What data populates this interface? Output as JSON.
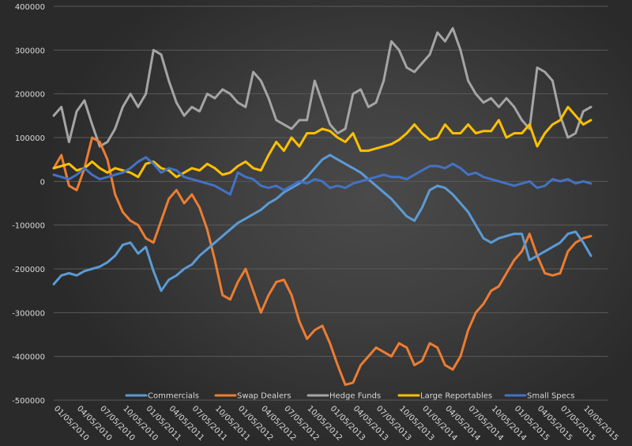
{
  "chart_data": {
    "type": "line",
    "title": "",
    "xlabel": "",
    "ylabel": "",
    "ylim": [
      -500000,
      400000
    ],
    "yticks": [
      400000,
      300000,
      200000,
      100000,
      0,
      -100000,
      -200000,
      -300000,
      -400000,
      -500000
    ],
    "ytick_labels": [
      "400000",
      "300000",
      "200000",
      "100000",
      "0",
      "-100000",
      "-200000",
      "-300000",
      "-400000",
      "-500000"
    ],
    "xtick_labels": [
      "01/05/2010",
      "04/05/2010",
      "07/05/2010",
      "10/05/2010",
      "01/05/2011",
      "04/05/2011",
      "07/05/2011",
      "10/05/2011",
      "01/05/2012",
      "04/05/2012",
      "07/05/2012",
      "10/05/2012",
      "01/05/2013",
      "04/05/2013",
      "07/05/2013",
      "10/05/2013",
      "01/05/2014",
      "04/05/2014",
      "07/05/2014",
      "10/05/2014",
      "01/05/2015",
      "04/05/2015",
      "07/05/2015",
      "10/05/2015"
    ],
    "x_range_months": [
      0,
      70
    ],
    "grid": true,
    "legend_position": "bottom",
    "series": [
      {
        "name": "Commercials",
        "color": "#5b9bd5",
        "x_months": [
          0,
          1,
          2,
          3,
          4,
          5,
          6,
          7,
          8,
          9,
          10,
          11,
          12,
          13,
          14,
          15,
          16,
          17,
          18,
          19,
          20,
          21,
          22,
          23,
          24,
          25,
          26,
          27,
          28,
          29,
          30,
          31,
          32,
          33,
          34,
          35,
          36,
          37,
          38,
          39,
          40,
          41,
          42,
          43,
          44,
          45,
          46,
          47,
          48,
          49,
          50,
          51,
          52,
          53,
          54,
          55,
          56,
          57,
          58,
          59,
          60,
          61,
          62,
          63,
          64,
          65,
          66,
          67,
          68,
          69,
          70
        ],
        "values": [
          -235000,
          -215000,
          -210000,
          -215000,
          -205000,
          -200000,
          -195000,
          -185000,
          -170000,
          -145000,
          -140000,
          -165000,
          -150000,
          -205000,
          -250000,
          -225000,
          -215000,
          -200000,
          -190000,
          -170000,
          -155000,
          -140000,
          -125000,
          -110000,
          -95000,
          -85000,
          -75000,
          -65000,
          -50000,
          -40000,
          -25000,
          -15000,
          -5000,
          10000,
          30000,
          50000,
          60000,
          50000,
          40000,
          30000,
          20000,
          5000,
          -10000,
          -25000,
          -40000,
          -60000,
          -80000,
          -90000,
          -60000,
          -20000,
          -10000,
          -15000,
          -30000,
          -50000,
          -70000,
          -100000,
          -130000,
          -140000,
          -130000,
          -125000,
          -120000,
          -120000,
          -180000,
          -170000,
          -160000,
          -150000,
          -140000,
          -120000,
          -115000,
          -140000,
          -170000
        ]
      },
      {
        "name": "Swap Dealers",
        "color": "#ed7d31",
        "x_months": [
          0,
          1,
          2,
          3,
          4,
          5,
          6,
          7,
          8,
          9,
          10,
          11,
          12,
          13,
          14,
          15,
          16,
          17,
          18,
          19,
          20,
          21,
          22,
          23,
          24,
          25,
          26,
          27,
          28,
          29,
          30,
          31,
          32,
          33,
          34,
          35,
          36,
          37,
          38,
          39,
          40,
          41,
          42,
          43,
          44,
          45,
          46,
          47,
          48,
          49,
          50,
          51,
          52,
          53,
          54,
          55,
          56,
          57,
          58,
          59,
          60,
          61,
          62,
          63,
          64,
          65,
          66,
          67,
          68,
          69,
          70
        ],
        "values": [
          30000,
          60000,
          -10000,
          -20000,
          30000,
          100000,
          90000,
          50000,
          -30000,
          -70000,
          -90000,
          -100000,
          -130000,
          -140000,
          -90000,
          -40000,
          -20000,
          -50000,
          -30000,
          -60000,
          -110000,
          -180000,
          -260000,
          -270000,
          -230000,
          -200000,
          -250000,
          -300000,
          -260000,
          -230000,
          -225000,
          -260000,
          -320000,
          -360000,
          -340000,
          -330000,
          -370000,
          -420000,
          -465000,
          -460000,
          -420000,
          -400000,
          -380000,
          -390000,
          -400000,
          -370000,
          -380000,
          -420000,
          -410000,
          -370000,
          -380000,
          -420000,
          -430000,
          -400000,
          -340000,
          -300000,
          -280000,
          -250000,
          -240000,
          -210000,
          -180000,
          -160000,
          -120000,
          -170000,
          -210000,
          -215000,
          -210000,
          -160000,
          -140000,
          -130000,
          -125000
        ]
      },
      {
        "name": "Hedge Funds",
        "color": "#a5a5a5",
        "x_months": [
          0,
          1,
          2,
          3,
          4,
          5,
          6,
          7,
          8,
          9,
          10,
          11,
          12,
          13,
          14,
          15,
          16,
          17,
          18,
          19,
          20,
          21,
          22,
          23,
          24,
          25,
          26,
          27,
          28,
          29,
          30,
          31,
          32,
          33,
          34,
          35,
          36,
          37,
          38,
          39,
          40,
          41,
          42,
          43,
          44,
          45,
          46,
          47,
          48,
          49,
          50,
          51,
          52,
          53,
          54,
          55,
          56,
          57,
          58,
          59,
          60,
          61,
          62,
          63,
          64,
          65,
          66,
          67,
          68,
          69,
          70
        ],
        "values": [
          150000,
          170000,
          90000,
          160000,
          185000,
          130000,
          80000,
          90000,
          120000,
          170000,
          200000,
          170000,
          200000,
          300000,
          290000,
          230000,
          180000,
          150000,
          170000,
          160000,
          200000,
          190000,
          210000,
          200000,
          180000,
          170000,
          250000,
          230000,
          190000,
          140000,
          130000,
          120000,
          140000,
          140000,
          230000,
          180000,
          130000,
          110000,
          120000,
          200000,
          210000,
          170000,
          180000,
          230000,
          320000,
          300000,
          260000,
          250000,
          270000,
          290000,
          340000,
          320000,
          350000,
          300000,
          230000,
          200000,
          180000,
          190000,
          170000,
          190000,
          170000,
          140000,
          120000,
          260000,
          250000,
          230000,
          150000,
          100000,
          110000,
          160000,
          170000
        ]
      },
      {
        "name": "Large Reportables",
        "color": "#ffc000",
        "x_months": [
          0,
          1,
          2,
          3,
          4,
          5,
          6,
          7,
          8,
          9,
          10,
          11,
          12,
          13,
          14,
          15,
          16,
          17,
          18,
          19,
          20,
          21,
          22,
          23,
          24,
          25,
          26,
          27,
          28,
          29,
          30,
          31,
          32,
          33,
          34,
          35,
          36,
          37,
          38,
          39,
          40,
          41,
          42,
          43,
          44,
          45,
          46,
          47,
          48,
          49,
          50,
          51,
          52,
          53,
          54,
          55,
          56,
          57,
          58,
          59,
          60,
          61,
          62,
          63,
          64,
          65,
          66,
          67,
          68,
          69,
          70
        ],
        "values": [
          30000,
          35000,
          40000,
          25000,
          30000,
          45000,
          30000,
          20000,
          30000,
          25000,
          20000,
          10000,
          40000,
          45000,
          30000,
          25000,
          10000,
          20000,
          30000,
          25000,
          40000,
          30000,
          15000,
          20000,
          35000,
          45000,
          30000,
          25000,
          60000,
          90000,
          70000,
          100000,
          80000,
          110000,
          110000,
          120000,
          115000,
          100000,
          90000,
          110000,
          70000,
          70000,
          75000,
          80000,
          85000,
          95000,
          110000,
          130000,
          110000,
          95000,
          100000,
          130000,
          110000,
          110000,
          130000,
          110000,
          115000,
          115000,
          140000,
          100000,
          110000,
          110000,
          130000,
          80000,
          110000,
          130000,
          140000,
          170000,
          150000,
          130000,
          140000
        ]
      },
      {
        "name": "Small Specs",
        "color": "#4472c4",
        "x_months": [
          0,
          1,
          2,
          3,
          4,
          5,
          6,
          7,
          8,
          9,
          10,
          11,
          12,
          13,
          14,
          15,
          16,
          17,
          18,
          19,
          20,
          21,
          22,
          23,
          24,
          25,
          26,
          27,
          28,
          29,
          30,
          31,
          32,
          33,
          34,
          35,
          36,
          37,
          38,
          39,
          40,
          41,
          42,
          43,
          44,
          45,
          46,
          47,
          48,
          49,
          50,
          51,
          52,
          53,
          54,
          55,
          56,
          57,
          58,
          59,
          60,
          61,
          62,
          63,
          64,
          65,
          66,
          67,
          68,
          69,
          70
        ],
        "values": [
          15000,
          10000,
          5000,
          15000,
          30000,
          15000,
          5000,
          10000,
          15000,
          20000,
          30000,
          45000,
          55000,
          40000,
          20000,
          30000,
          25000,
          10000,
          5000,
          0,
          -5000,
          -10000,
          -20000,
          -30000,
          20000,
          10000,
          5000,
          -10000,
          -15000,
          -10000,
          -20000,
          -10000,
          0,
          -5000,
          5000,
          0,
          -15000,
          -10000,
          -15000,
          -5000,
          0,
          5000,
          10000,
          15000,
          10000,
          10000,
          5000,
          15000,
          25000,
          35000,
          35000,
          30000,
          40000,
          30000,
          15000,
          20000,
          10000,
          5000,
          0,
          -5000,
          -10000,
          -5000,
          0,
          -15000,
          -10000,
          5000,
          0,
          5000,
          -5000,
          0,
          -5000
        ]
      }
    ]
  }
}
